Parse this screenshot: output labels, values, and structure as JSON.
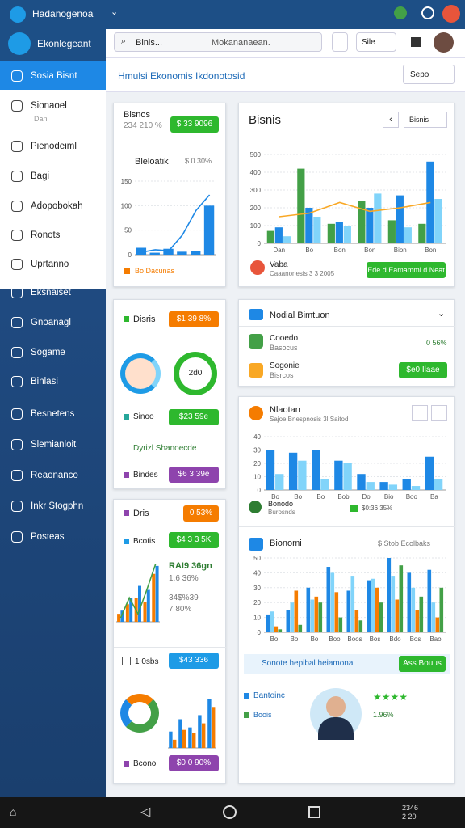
{
  "app_bar": {
    "title": "Hadanogenoa"
  },
  "sidebar": {
    "brand": "Ekonlegeant",
    "sub": "Dan",
    "items": [
      "Sosia Bisnt",
      "Sionaoel",
      "Pienodeiml",
      "Bagi",
      "Adopobokah",
      "Ronots",
      "Uprtanno",
      "Eksnaiset",
      "Gnoanagl",
      "Sogame",
      "Binlasi",
      "Besnetens",
      "Slemianloit",
      "Reaonanco",
      "Inkr Stogphn",
      "Posteas"
    ]
  },
  "search": {
    "query": "Blnis...",
    "placeholder": "Mokananaean.",
    "button": "Sile"
  },
  "page": {
    "title": "Hmulsi Ekonomis Ikdonotosid",
    "filter": "Sepo"
  },
  "cards": {
    "summary": {
      "title": "Bisnos",
      "value": "234 210 %",
      "badge": "$ 33 9096",
      "subtitle": "Bleloatik",
      "change": "$ 0 30%",
      "footer": "Bo Dacunas",
      "chart": {
        "ylim": [
          0,
          150
        ],
        "yticks": [
          0,
          50,
          100,
          150
        ],
        "series": [
          {
            "type": "bar",
            "color": "#1e88e5",
            "values": [
              14,
              4,
              12,
              6,
              8,
              100
            ]
          },
          {
            "type": "line",
            "color": "#1e88e5",
            "values": [
              5,
              10,
              8,
              40,
              90,
              122
            ]
          }
        ]
      }
    },
    "split": {
      "title": "Disris",
      "badge": "$1 39 8%",
      "donut_label": "2d0",
      "row1": "Sinoo",
      "badge2": "$23 59e",
      "row2": "Dyrizl Shanoecde",
      "row3": "Bindes",
      "badge3": "$6 3 39e"
    },
    "growth": {
      "title": "Dris",
      "badge": "0 53%",
      "row1": "Bcotis",
      "badge2": "$4 3 3 5K",
      "headline": "RAI9 36gn",
      "line1": "1.6 36%",
      "line2": "34$%39",
      "line3": "7 80%",
      "row2": "1 0sbs",
      "badge3": "$43 336",
      "row3": "Bcono",
      "badge4": "$0 0 90%",
      "chart": {
        "ylim": [
          0,
          80
        ],
        "series": [
          {
            "type": "bar",
            "color": "#f57c00",
            "values": [
              10,
              22,
              30,
              25,
              60
            ]
          },
          {
            "type": "bar",
            "color": "#1e88e5",
            "values": [
              14,
              30,
              45,
              40,
              70
            ]
          },
          {
            "type": "line",
            "color": "#43a047",
            "values": [
              5,
              30,
              10,
              40,
              72
            ]
          }
        ]
      },
      "chart2": {
        "ylim": [
          0,
          70
        ],
        "series": [
          {
            "type": "bar",
            "color": "#1e88e5",
            "values": [
              20,
              35,
              25,
              40,
              60
            ]
          },
          {
            "type": "bar",
            "color": "#f57c00",
            "values": [
              10,
              22,
              18,
              30,
              50
            ]
          }
        ]
      }
    },
    "bisnis": {
      "title": "Bisnis",
      "dropdown": "Bisnis",
      "label": "Vaba",
      "caption": "Caaanonesis 3 3 2005",
      "button": "Ede d Eamammi d Neat",
      "chart": {
        "ylim": [
          0,
          500
        ],
        "yticks": [
          0,
          100,
          200,
          300,
          400,
          500
        ],
        "categories": [
          "Dan",
          "Bo",
          "Bon",
          "Bon",
          "Bion",
          "Bon"
        ],
        "series": [
          {
            "type": "bar",
            "color": "#43a047",
            "values": [
              70,
              420,
              110,
              240,
              130,
              110
            ]
          },
          {
            "type": "bar",
            "color": "#1e88e5",
            "values": [
              90,
              200,
              120,
              200,
              270,
              460
            ]
          },
          {
            "type": "bar",
            "color": "#81d4fa",
            "values": [
              40,
              150,
              100,
              280,
              90,
              250
            ]
          },
          {
            "type": "line",
            "color": "#f9a825",
            "values": [
              150,
              170,
              230,
              180,
              200,
              230
            ]
          }
        ]
      }
    },
    "social": {
      "title": "Nodial Bimtuon",
      "row1": "Cooedo",
      "row1_sub": "Basocus",
      "row1_value": "0 56%",
      "row2": "Sogonie",
      "row2_sub": "Bisrcos",
      "button": "$e0 Ilaae"
    },
    "market": {
      "title": "Nlaotan",
      "subtitle": "Sajoe Bnespnosis 3l Saitod",
      "legend_title": "Bonodo",
      "legend_sub": "Burosnds",
      "legend_value": "$0:36 35%",
      "chart": {
        "ylim": [
          0,
          40
        ],
        "yticks": [
          0,
          10,
          20,
          30,
          40
        ],
        "categories": [
          "Bo",
          "Bo",
          "Bo",
          "Bob",
          "Do",
          "Bio",
          "Boo",
          "Ba"
        ],
        "series": [
          {
            "type": "bar",
            "color": "#1e88e5",
            "values": [
              30,
              28,
              30,
              22,
              12,
              6,
              8,
              25
            ]
          },
          {
            "type": "bar",
            "color": "#81d4fa",
            "values": [
              12,
              22,
              8,
              20,
              6,
              4,
              3,
              8
            ]
          }
        ]
      },
      "title2": "Bionomi",
      "title2_right": "$ Stob Ecolbaks",
      "chart2": {
        "ylim": [
          0,
          50
        ],
        "yticks": [
          0,
          10,
          20,
          30,
          40,
          50
        ],
        "categories": [
          "Bo",
          "Bo",
          "Bo",
          "Boo",
          "Boos",
          "Bos",
          "Bdo",
          "Bos",
          "Bao"
        ],
        "series": [
          {
            "type": "bar",
            "color": "#1e88e5",
            "values": [
              12,
              15,
              30,
              44,
              28,
              35,
              50,
              40,
              42
            ]
          },
          {
            "type": "bar",
            "color": "#81d4fa",
            "values": [
              14,
              20,
              22,
              40,
              38,
              36,
              38,
              30,
              20
            ]
          },
          {
            "type": "bar",
            "color": "#f57c00",
            "values": [
              4,
              28,
              24,
              27,
              15,
              30,
              22,
              15,
              10
            ]
          },
          {
            "type": "bar",
            "color": "#43a047",
            "values": [
              2,
              5,
              20,
              10,
              8,
              20,
              45,
              24,
              30
            ]
          }
        ]
      },
      "banner": "Sonote hepibal heiamona",
      "banner_button": "Ass Bouus",
      "person": "Bantoinc",
      "person_sub": "Boois",
      "rating": "★★★★",
      "rating_value": "1.96%"
    }
  },
  "status_bar": {
    "time": "2346",
    "date": "2 20"
  }
}
